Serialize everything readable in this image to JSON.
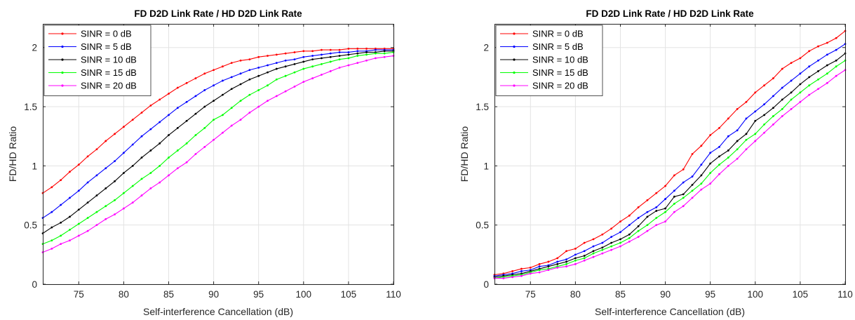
{
  "chart_data": [
    {
      "type": "line",
      "title": "FD D2D Link Rate / HD D2D Link Rate",
      "xlabel": "Self-interference Cancellation (dB)",
      "ylabel": "FD/HD Ratio",
      "xlim": [
        71,
        110
      ],
      "ylim": [
        0,
        2.2
      ],
      "xticks": [
        75,
        80,
        85,
        90,
        95,
        100,
        105,
        110
      ],
      "yticks": [
        0,
        0.5,
        1,
        1.5,
        2
      ],
      "grid": true,
      "legend": "top-left",
      "x": [
        71,
        72,
        73,
        74,
        75,
        76,
        77,
        78,
        79,
        80,
        81,
        82,
        83,
        84,
        85,
        86,
        87,
        88,
        89,
        90,
        91,
        92,
        93,
        94,
        95,
        96,
        97,
        98,
        99,
        100,
        101,
        102,
        103,
        104,
        105,
        106,
        107,
        108,
        109,
        110
      ],
      "series": [
        {
          "name": "SINR = 0 dB",
          "color": "#ff0000",
          "values": [
            0.77,
            0.82,
            0.88,
            0.95,
            1.01,
            1.08,
            1.14,
            1.21,
            1.27,
            1.33,
            1.39,
            1.45,
            1.51,
            1.56,
            1.61,
            1.66,
            1.7,
            1.74,
            1.78,
            1.81,
            1.84,
            1.87,
            1.89,
            1.9,
            1.92,
            1.93,
            1.94,
            1.95,
            1.96,
            1.97,
            1.97,
            1.98,
            1.98,
            1.98,
            1.99,
            1.99,
            1.99,
            1.99,
            1.99,
            1.99
          ]
        },
        {
          "name": "SINR = 5 dB",
          "color": "#0000ff",
          "values": [
            0.56,
            0.61,
            0.67,
            0.73,
            0.79,
            0.86,
            0.92,
            0.98,
            1.04,
            1.11,
            1.18,
            1.25,
            1.31,
            1.37,
            1.43,
            1.49,
            1.54,
            1.59,
            1.64,
            1.68,
            1.72,
            1.75,
            1.78,
            1.81,
            1.83,
            1.85,
            1.87,
            1.89,
            1.9,
            1.92,
            1.93,
            1.94,
            1.95,
            1.96,
            1.96,
            1.97,
            1.97,
            1.98,
            1.98,
            1.98
          ]
        },
        {
          "name": "SINR = 10 dB",
          "color": "#000000",
          "values": [
            0.43,
            0.48,
            0.52,
            0.57,
            0.63,
            0.69,
            0.75,
            0.81,
            0.87,
            0.94,
            1.0,
            1.07,
            1.13,
            1.19,
            1.26,
            1.32,
            1.38,
            1.44,
            1.5,
            1.55,
            1.6,
            1.65,
            1.69,
            1.73,
            1.76,
            1.79,
            1.82,
            1.84,
            1.86,
            1.88,
            1.9,
            1.91,
            1.92,
            1.93,
            1.94,
            1.95,
            1.96,
            1.96,
            1.97,
            1.97
          ]
        },
        {
          "name": "SINR = 15 dB",
          "color": "#00ff00",
          "values": [
            0.34,
            0.37,
            0.41,
            0.46,
            0.51,
            0.56,
            0.61,
            0.66,
            0.71,
            0.77,
            0.83,
            0.89,
            0.94,
            1.0,
            1.07,
            1.13,
            1.19,
            1.26,
            1.32,
            1.39,
            1.43,
            1.49,
            1.55,
            1.6,
            1.64,
            1.68,
            1.73,
            1.76,
            1.79,
            1.82,
            1.84,
            1.86,
            1.88,
            1.9,
            1.91,
            1.93,
            1.94,
            1.95,
            1.95,
            1.96
          ]
        },
        {
          "name": "SINR = 20 dB",
          "color": "#ff00ff",
          "values": [
            0.27,
            0.3,
            0.34,
            0.37,
            0.41,
            0.45,
            0.5,
            0.55,
            0.59,
            0.64,
            0.69,
            0.75,
            0.81,
            0.86,
            0.92,
            0.98,
            1.03,
            1.1,
            1.16,
            1.22,
            1.28,
            1.34,
            1.39,
            1.45,
            1.5,
            1.55,
            1.59,
            1.63,
            1.67,
            1.71,
            1.74,
            1.77,
            1.8,
            1.83,
            1.85,
            1.87,
            1.89,
            1.91,
            1.92,
            1.93
          ]
        }
      ]
    },
    {
      "type": "line",
      "title": "FD D2D Link Rate / HD D2D Link Rate",
      "xlabel": "Self-interference Cancellation (dB)",
      "ylabel": "FD/HD Ratio",
      "xlim": [
        71,
        110
      ],
      "ylim": [
        0,
        2.2
      ],
      "xticks": [
        75,
        80,
        85,
        90,
        95,
        100,
        105,
        110
      ],
      "yticks": [
        0,
        0.5,
        1,
        1.5,
        2
      ],
      "grid": true,
      "legend": "top-left",
      "x": [
        71,
        72,
        73,
        74,
        75,
        76,
        77,
        78,
        79,
        80,
        81,
        82,
        83,
        84,
        85,
        86,
        87,
        88,
        89,
        90,
        91,
        92,
        93,
        94,
        95,
        96,
        97,
        98,
        99,
        100,
        101,
        102,
        103,
        104,
        105,
        106,
        107,
        108,
        109,
        110
      ],
      "series": [
        {
          "name": "SINR = 0 dB",
          "color": "#ff0000",
          "values": [
            0.08,
            0.09,
            0.11,
            0.13,
            0.14,
            0.17,
            0.19,
            0.22,
            0.28,
            0.3,
            0.35,
            0.38,
            0.42,
            0.47,
            0.53,
            0.58,
            0.65,
            0.71,
            0.77,
            0.83,
            0.92,
            0.97,
            1.1,
            1.17,
            1.26,
            1.32,
            1.4,
            1.48,
            1.54,
            1.62,
            1.68,
            1.74,
            1.82,
            1.87,
            1.91,
            1.97,
            2.01,
            2.04,
            2.08,
            2.14
          ]
        },
        {
          "name": "SINR = 5 dB",
          "color": "#0000ff",
          "values": [
            0.07,
            0.08,
            0.09,
            0.11,
            0.12,
            0.15,
            0.16,
            0.19,
            0.21,
            0.25,
            0.28,
            0.32,
            0.35,
            0.4,
            0.44,
            0.5,
            0.56,
            0.61,
            0.65,
            0.72,
            0.79,
            0.86,
            0.91,
            1.01,
            1.11,
            1.16,
            1.25,
            1.3,
            1.4,
            1.46,
            1.52,
            1.59,
            1.66,
            1.72,
            1.78,
            1.84,
            1.89,
            1.94,
            1.98,
            2.03
          ]
        },
        {
          "name": "SINR = 10 dB",
          "color": "#000000",
          "values": [
            0.06,
            0.07,
            0.08,
            0.09,
            0.11,
            0.13,
            0.15,
            0.17,
            0.19,
            0.22,
            0.24,
            0.28,
            0.31,
            0.35,
            0.38,
            0.42,
            0.49,
            0.57,
            0.62,
            0.64,
            0.74,
            0.76,
            0.84,
            0.92,
            1.02,
            1.08,
            1.13,
            1.21,
            1.27,
            1.38,
            1.43,
            1.49,
            1.56,
            1.62,
            1.69,
            1.75,
            1.8,
            1.85,
            1.89,
            1.95
          ]
        },
        {
          "name": "SINR = 15 dB",
          "color": "#00ff00",
          "values": [
            0.05,
            0.06,
            0.07,
            0.08,
            0.1,
            0.12,
            0.13,
            0.15,
            0.17,
            0.2,
            0.22,
            0.26,
            0.29,
            0.32,
            0.35,
            0.39,
            0.45,
            0.5,
            0.56,
            0.61,
            0.68,
            0.73,
            0.79,
            0.85,
            0.94,
            1.01,
            1.07,
            1.14,
            1.22,
            1.27,
            1.35,
            1.42,
            1.48,
            1.56,
            1.62,
            1.68,
            1.73,
            1.78,
            1.84,
            1.89
          ]
        },
        {
          "name": "SINR = 20 dB",
          "color": "#ff00ff",
          "values": [
            0.05,
            0.05,
            0.06,
            0.07,
            0.09,
            0.1,
            0.12,
            0.14,
            0.15,
            0.17,
            0.2,
            0.23,
            0.26,
            0.29,
            0.32,
            0.36,
            0.4,
            0.45,
            0.5,
            0.53,
            0.61,
            0.66,
            0.73,
            0.8,
            0.85,
            0.93,
            1.0,
            1.06,
            1.14,
            1.21,
            1.28,
            1.35,
            1.42,
            1.48,
            1.54,
            1.6,
            1.65,
            1.7,
            1.76,
            1.81
          ]
        }
      ]
    }
  ]
}
